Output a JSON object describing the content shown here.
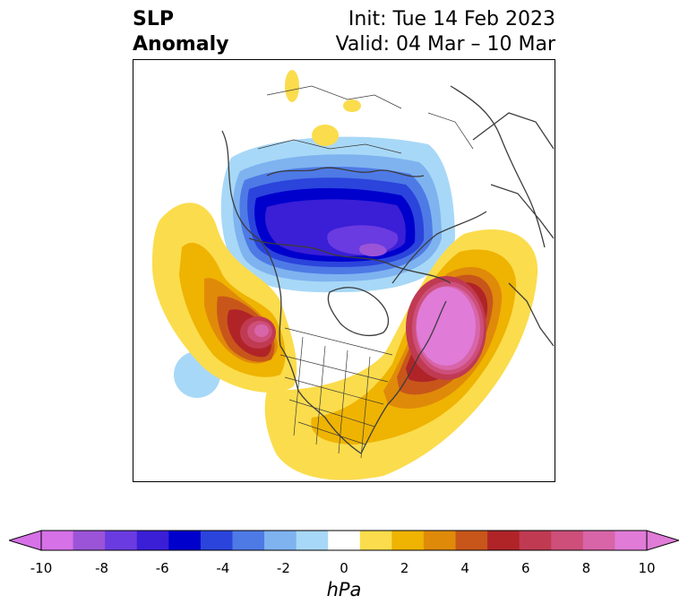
{
  "header": {
    "title_line1": "SLP",
    "title_line2": "Anomaly",
    "init": "Init: Tue 14 Feb 2023",
    "valid": "Valid: 04 Mar – 10 Mar"
  },
  "colorbar": {
    "unit": "hPa",
    "ticks": [
      "-10",
      "-8",
      "-6",
      "-4",
      "-2",
      "0",
      "2",
      "4",
      "6",
      "8",
      "10"
    ],
    "colors": [
      "#d671e8",
      "#9b54d8",
      "#6a3be0",
      "#3a1fd6",
      "#0000cd",
      "#2b44db",
      "#4e7ae6",
      "#7eb3f0",
      "#a8d8f7",
      "#ffffff",
      "#fbdc4c",
      "#efb302",
      "#e08a0a",
      "#c8561a",
      "#b02428",
      "#c03a52",
      "#cd4f7a",
      "#d865a8",
      "#e07bd8"
    ],
    "extend_min_color": "#d671e8",
    "extend_max_color": "#e07bd8"
  }
}
